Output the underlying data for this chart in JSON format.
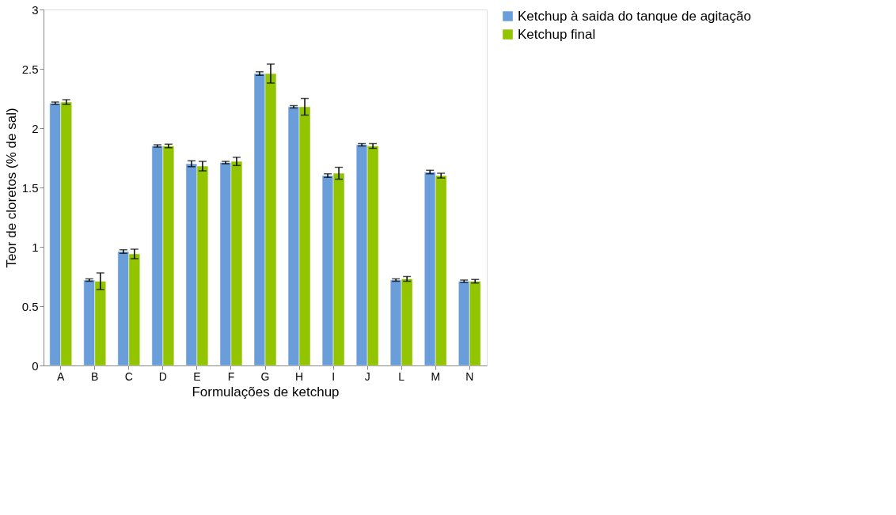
{
  "chart_data": {
    "type": "bar",
    "xlabel": "Formulações de ketchup",
    "ylabel": "Teor de cloretos (% de sal)",
    "categories": [
      "A",
      "B",
      "C",
      "D",
      "E",
      "F",
      "G",
      "H",
      "I",
      "J",
      "L",
      "M",
      "N"
    ],
    "series": [
      {
        "name": "Ketchup à saida do tanque de agitação",
        "color": "#6a9edb",
        "values": [
          2.21,
          0.72,
          0.96,
          1.85,
          1.7,
          1.71,
          2.46,
          2.18,
          1.6,
          1.86,
          0.72,
          1.63,
          0.71
        ],
        "errors": [
          0.01,
          0.01,
          0.015,
          0.01,
          0.025,
          0.01,
          0.015,
          0.01,
          0.015,
          0.01,
          0.01,
          0.015,
          0.01
        ]
      },
      {
        "name": "Ketchup final",
        "color": "#92c400",
        "values": [
          2.22,
          0.71,
          0.94,
          1.85,
          1.68,
          1.72,
          2.46,
          2.18,
          1.62,
          1.85,
          0.73,
          1.6,
          0.71
        ],
        "errors": [
          0.02,
          0.07,
          0.04,
          0.015,
          0.04,
          0.035,
          0.08,
          0.07,
          0.05,
          0.02,
          0.02,
          0.02,
          0.015
        ]
      }
    ],
    "ylim": [
      0,
      3
    ],
    "yticks": [
      0,
      0.5,
      1,
      1.5,
      2,
      2.5,
      3
    ],
    "grid": false,
    "legend": "right"
  }
}
